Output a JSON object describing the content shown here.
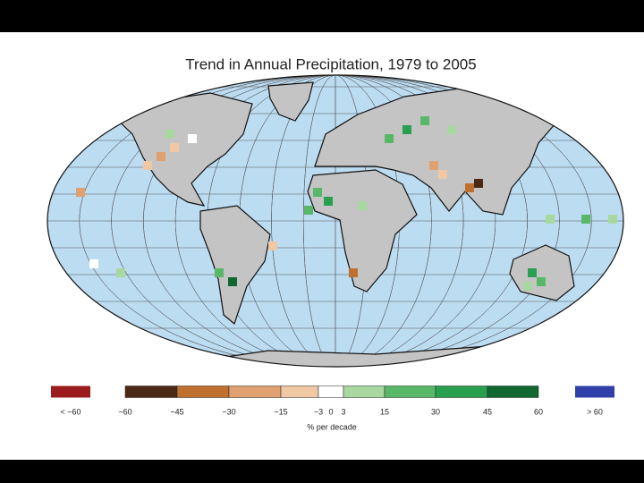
{
  "title": "Trend in Annual Precipitation, 1979 to 2005",
  "legend": {
    "below": {
      "label": "< −60",
      "color": "#9b1c1c"
    },
    "ticks": [
      "−60",
      "−45",
      "−30",
      "−15",
      "−3",
      "0",
      "3",
      "15",
      "30",
      "45",
      "60"
    ],
    "colors": [
      "#4a2a14",
      "#c0702e",
      "#e0a070",
      "#f0c8a4",
      "#ffffff",
      "#a8d8a0",
      "#58b868",
      "#28a050",
      "#106830"
    ],
    "above": {
      "label": "> 60",
      "color": "#3040a8"
    },
    "unit": "% per decade"
  }
}
